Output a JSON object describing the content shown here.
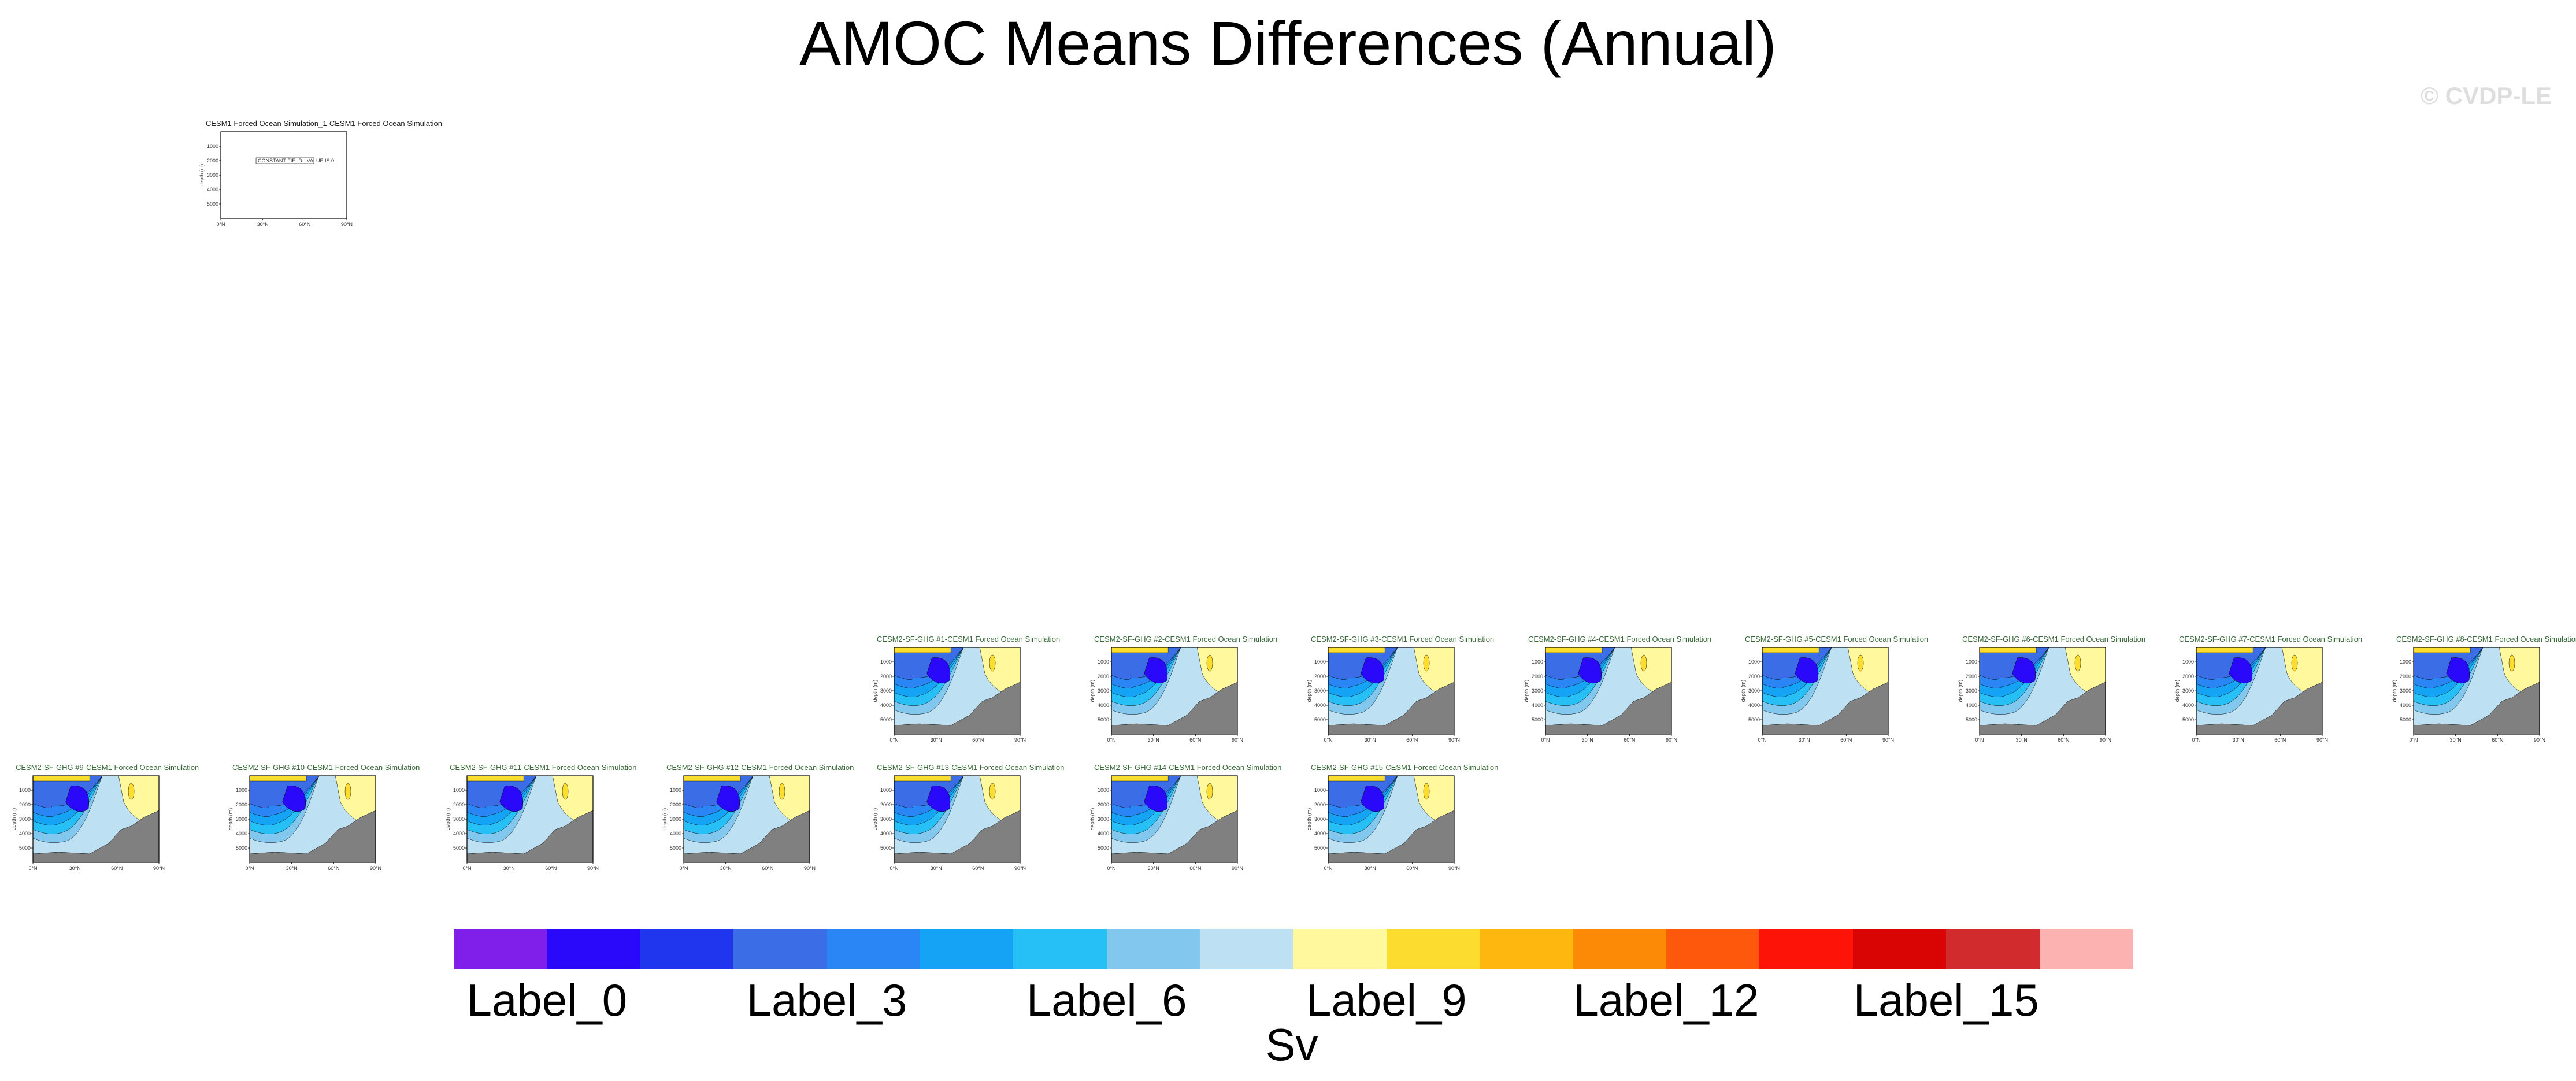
{
  "title": "AMOC Means Differences (Annual)",
  "watermark": "© CVDP-LE",
  "colors": {
    "land": "#808080",
    "panel_title": "#3a6a3a",
    "palette": [
      "#7f1fe9",
      "#2a08f9",
      "#1f36ee",
      "#3b6de6",
      "#2a85f5",
      "#14a3f5",
      "#27c0f6",
      "#82c8ee",
      "#bde1f3",
      "#fff89c",
      "#fcdd2f",
      "#fdb70e",
      "#fd8a06",
      "#fd580c",
      "#fd1308",
      "#d90505",
      "#d22b2d",
      "#fdb2b2"
    ]
  },
  "chart_data": {
    "type": "heatmap",
    "title": "AMOC Means Differences (Annual)",
    "units": "Sv",
    "colorbar": {
      "n_boxes": 18,
      "labels": [
        {
          "text": "Label_0",
          "index": 0
        },
        {
          "text": "Label_3",
          "index": 3
        },
        {
          "text": "Label_6",
          "index": 6
        },
        {
          "text": "Label_9",
          "index": 9
        },
        {
          "text": "Label_12",
          "index": 12
        },
        {
          "text": "Label_15",
          "index": 15
        }
      ]
    },
    "axes": {
      "x_ticks": [
        "0°N",
        "30°N",
        "60°N",
        "90°N"
      ],
      "y_ticks": [
        "1000",
        "2000",
        "3000",
        "4000",
        "5000"
      ],
      "ylabel": "depth (m)"
    },
    "panels": [
      {
        "title": "CESM1 Forced Ocean Simulation_1-CESM1 Forced Ocean Simulation",
        "empty": true,
        "message": "CONSTANT FIELD - VALUE IS 0"
      },
      {
        "title": "CESM2-SF-GHG #1-CESM1 Forced Ocean Simulation"
      },
      {
        "title": "CESM2-SF-GHG #2-CESM1 Forced Ocean Simulation"
      },
      {
        "title": "CESM2-SF-GHG #3-CESM1 Forced Ocean Simulation"
      },
      {
        "title": "CESM2-SF-GHG #4-CESM1 Forced Ocean Simulation"
      },
      {
        "title": "CESM2-SF-GHG #5-CESM1 Forced Ocean Simulation"
      },
      {
        "title": "CESM2-SF-GHG #6-CESM1 Forced Ocean Simulation"
      },
      {
        "title": "CESM2-SF-GHG #7-CESM1 Forced Ocean Simulation"
      },
      {
        "title": "CESM2-SF-GHG #8-CESM1 Forced Ocean Simulation"
      },
      {
        "title": "CESM2-SF-GHG #9-CESM1 Forced Ocean Simulation"
      },
      {
        "title": "CESM2-SF-GHG #10-CESM1 Forced Ocean Simulation"
      },
      {
        "title": "CESM2-SF-GHG #11-CESM1 Forced Ocean Simulation"
      },
      {
        "title": "CESM2-SF-GHG #12-CESM1 Forced Ocean Simulation"
      },
      {
        "title": "CESM2-SF-GHG #13-CESM1 Forced Ocean Simulation"
      },
      {
        "title": "CESM2-SF-GHG #14-CESM1 Forced Ocean Simulation"
      },
      {
        "title": "CESM2-SF-GHG #15-CESM1 Forced Ocean Simulation"
      }
    ]
  }
}
